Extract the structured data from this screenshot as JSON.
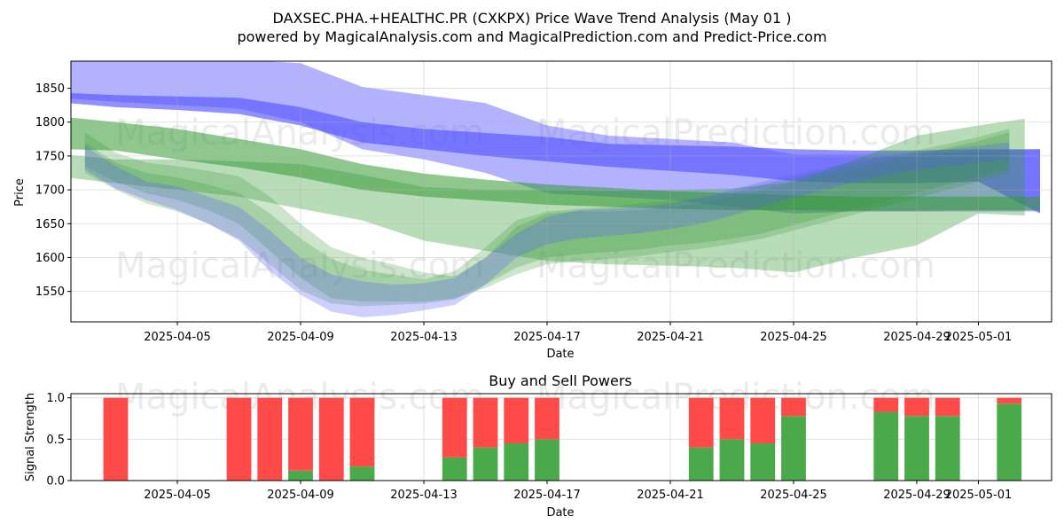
{
  "title_line1": "DAXSEC.PHA.+HEALTHC.PR (CXKPX) Price Wave Trend Analysis (May 01 )",
  "title_line2": "powered by MagicalAnalysis.com and MagicalPrediction.com and Predict-Price.com",
  "watermarks": {
    "top_left": "MagicalAnalysis.com",
    "top_right": "MagicalPrediction.com",
    "mid_left": "MagicalAnalysis.com",
    "mid_right": "MagicalPrediction.com",
    "bottom_left": "MagicalAnalysis.com",
    "bottom_right": "MagicalPrediction.com"
  },
  "colors": {
    "blue_band": "#5555ff",
    "green_band": "#339933",
    "buy": "#4aaa4a",
    "sell": "#ff4a4a"
  },
  "chart_data": [
    {
      "type": "area",
      "title": "",
      "xlabel": "Date",
      "ylabel": "Price",
      "ylim": [
        1505,
        1890
      ],
      "x_tick_labels": [
        "2025-04-05",
        "2025-04-09",
        "2025-04-13",
        "2025-04-17",
        "2025-04-21",
        "2025-04-25",
        "2025-04-29",
        "2025-05-01"
      ],
      "y_tick_labels": [
        "1550",
        "1600",
        "1650",
        "1700",
        "1750",
        "1800",
        "1850"
      ],
      "y_ticks": [
        1550,
        1600,
        1650,
        1700,
        1750,
        1800,
        1850
      ],
      "x_ticks": [
        4,
        8,
        12,
        16,
        20,
        24,
        28,
        30
      ],
      "x_start": "2025-04-01",
      "grid": true,
      "bands": [
        {
          "name": "blue-wide",
          "color": "blue",
          "opacity": 0.45,
          "x": [
            0.4,
            2,
            4,
            6,
            8,
            10,
            12,
            14,
            16,
            18,
            20,
            22,
            24,
            26,
            28,
            30,
            32
          ],
          "upper": [
            1890,
            1895,
            1893,
            1892,
            1887,
            1852,
            1840,
            1828,
            1795,
            1780,
            1775,
            1770,
            1752,
            1752,
            1752,
            1757,
            1760
          ],
          "lower": [
            1835,
            1830,
            1825,
            1820,
            1800,
            1760,
            1745,
            1725,
            1695,
            1690,
            1685,
            1675,
            1665,
            1668,
            1668,
            1668,
            1668
          ]
        },
        {
          "name": "blue-core",
          "color": "blue",
          "opacity": 0.65,
          "x": [
            0.5,
            2,
            4,
            6,
            8,
            10,
            12,
            14,
            16,
            18,
            20,
            22,
            24,
            26,
            28,
            30,
            32
          ],
          "upper": [
            1843,
            1840,
            1838,
            1836,
            1822,
            1800,
            1790,
            1784,
            1778,
            1768,
            1766,
            1764,
            1760,
            1758,
            1758,
            1760,
            1760
          ],
          "lower": [
            1828,
            1822,
            1818,
            1812,
            1795,
            1770,
            1760,
            1750,
            1742,
            1734,
            1728,
            1722,
            1713,
            1710,
            1710,
            1712,
            1665
          ]
        },
        {
          "name": "green-wide",
          "color": "green",
          "opacity": 0.35,
          "x": [
            0.4,
            2,
            4,
            6,
            8,
            10,
            12,
            14,
            16,
            18,
            20,
            22,
            24,
            26,
            28,
            30,
            31.5
          ],
          "upper": [
            1752,
            1745,
            1745,
            1742,
            1738,
            1722,
            1704,
            1700,
            1700,
            1698,
            1700,
            1702,
            1712,
            1745,
            1780,
            1795,
            1805
          ],
          "lower": [
            1718,
            1710,
            1700,
            1690,
            1672,
            1655,
            1625,
            1610,
            1595,
            1590,
            1588,
            1585,
            1578,
            1600,
            1618,
            1665,
            1662
          ]
        },
        {
          "name": "green-core",
          "color": "green",
          "opacity": 0.55,
          "x": [
            0.5,
            2,
            4,
            6,
            8,
            10,
            12,
            14,
            16,
            18,
            20,
            22,
            24,
            26,
            28,
            30,
            32
          ],
          "upper": [
            1807,
            1800,
            1790,
            1775,
            1760,
            1738,
            1724,
            1715,
            1708,
            1703,
            1698,
            1695,
            1692,
            1690,
            1690,
            1690,
            1690
          ],
          "lower": [
            1760,
            1758,
            1745,
            1733,
            1718,
            1700,
            1690,
            1684,
            1678,
            1675,
            1672,
            1670,
            1670,
            1669,
            1669,
            1670,
            1670
          ]
        },
        {
          "name": "green-wave-a",
          "color": "green",
          "opacity": 0.25,
          "x": [
            1,
            2,
            3,
            4,
            5,
            6,
            7,
            8,
            9,
            10,
            11,
            12,
            13,
            14,
            15,
            16,
            17,
            18,
            19,
            20,
            21,
            22,
            23,
            24,
            25,
            26,
            27,
            28,
            29,
            30,
            31
          ],
          "upper": [
            1785,
            1755,
            1740,
            1735,
            1728,
            1720,
            1690,
            1650,
            1615,
            1600,
            1590,
            1578,
            1572,
            1600,
            1645,
            1665,
            1668,
            1668,
            1670,
            1675,
            1680,
            1690,
            1700,
            1712,
            1722,
            1732,
            1742,
            1752,
            1762,
            1772,
            1785
          ],
          "lower": [
            1735,
            1712,
            1695,
            1685,
            1670,
            1650,
            1610,
            1570,
            1540,
            1535,
            1535,
            1535,
            1540,
            1555,
            1575,
            1590,
            1595,
            1598,
            1602,
            1608,
            1613,
            1620,
            1628,
            1640,
            1652,
            1664,
            1676,
            1688,
            1700,
            1712,
            1725
          ]
        },
        {
          "name": "green-wave-b",
          "color": "green",
          "opacity": 0.25,
          "x": [
            1,
            2,
            3,
            4,
            5,
            6,
            7,
            8,
            9,
            10,
            11,
            12,
            13,
            14,
            15,
            16,
            17,
            18,
            19,
            20,
            21,
            22,
            23,
            24,
            25,
            26,
            27,
            28,
            29,
            30,
            31
          ],
          "upper": [
            1770,
            1740,
            1725,
            1718,
            1708,
            1695,
            1665,
            1628,
            1598,
            1582,
            1575,
            1568,
            1580,
            1615,
            1655,
            1668,
            1672,
            1675,
            1680,
            1684,
            1688,
            1695,
            1708,
            1718,
            1728,
            1738,
            1748,
            1758,
            1768,
            1778,
            1790
          ],
          "lower": [
            1725,
            1700,
            1680,
            1668,
            1650,
            1628,
            1590,
            1552,
            1532,
            1528,
            1530,
            1532,
            1538,
            1560,
            1585,
            1600,
            1605,
            1608,
            1612,
            1618,
            1622,
            1628,
            1636,
            1648,
            1660,
            1672,
            1684,
            1696,
            1708,
            1720,
            1732
          ]
        },
        {
          "name": "blue-wave",
          "color": "blue",
          "opacity": 0.28,
          "x": [
            1,
            2,
            3,
            4,
            5,
            6,
            7,
            8,
            9,
            10,
            11,
            12,
            13,
            14,
            15,
            16,
            17,
            18,
            19,
            20,
            21,
            22,
            23,
            24,
            25,
            26,
            27,
            28,
            29,
            30,
            31
          ],
          "upper": [
            1765,
            1735,
            1712,
            1705,
            1690,
            1675,
            1640,
            1600,
            1575,
            1565,
            1560,
            1562,
            1570,
            1600,
            1635,
            1660,
            1670,
            1672,
            1675,
            1680,
            1688,
            1700,
            1712,
            1722,
            1732,
            1742,
            1750,
            1755,
            1760,
            1765,
            1770
          ],
          "lower": [
            1730,
            1702,
            1685,
            1670,
            1650,
            1625,
            1580,
            1545,
            1520,
            1512,
            1515,
            1522,
            1530,
            1560,
            1600,
            1620,
            1628,
            1632,
            1636,
            1642,
            1650,
            1662,
            1675,
            1688,
            1700,
            1712,
            1722,
            1730,
            1735,
            1740,
            1745
          ]
        }
      ]
    },
    {
      "type": "bar",
      "title": "Buy and Sell Powers",
      "xlabel": "Date",
      "ylabel": "Signal Strength",
      "ylim": [
        0,
        1.05
      ],
      "y_tick_labels": [
        "0.0",
        "0.5",
        "1.0"
      ],
      "y_ticks": [
        0,
        0.5,
        1.0
      ],
      "x_tick_labels": [
        "2025-04-05",
        "2025-04-09",
        "2025-04-13",
        "2025-04-17",
        "2025-04-21",
        "2025-04-25",
        "2025-04-29",
        "2025-05-01"
      ],
      "x_ticks": [
        4,
        8,
        12,
        16,
        20,
        24,
        28,
        30
      ],
      "x_start": "2025-04-01",
      "series": [
        {
          "name": "Buy",
          "x": [
            2,
            6,
            7,
            8,
            9,
            10,
            13,
            14,
            15,
            16,
            21,
            22,
            23,
            24,
            27,
            28,
            29,
            31
          ],
          "values": [
            0,
            0,
            0,
            0.12,
            0,
            0.17,
            0.28,
            0.4,
            0.45,
            0.5,
            0.4,
            0.5,
            0.45,
            0.78,
            0.83,
            0.78,
            0.78,
            0.93
          ]
        },
        {
          "name": "Sell",
          "x": [
            2,
            6,
            7,
            8,
            9,
            10,
            13,
            14,
            15,
            16,
            21,
            22,
            23,
            24,
            27,
            28,
            29,
            31
          ],
          "values": [
            1.0,
            1.0,
            1.0,
            0.88,
            1.0,
            0.83,
            0.72,
            0.6,
            0.55,
            0.5,
            0.6,
            0.5,
            0.55,
            0.22,
            0.17,
            0.22,
            0.22,
            0.07
          ]
        }
      ]
    }
  ]
}
